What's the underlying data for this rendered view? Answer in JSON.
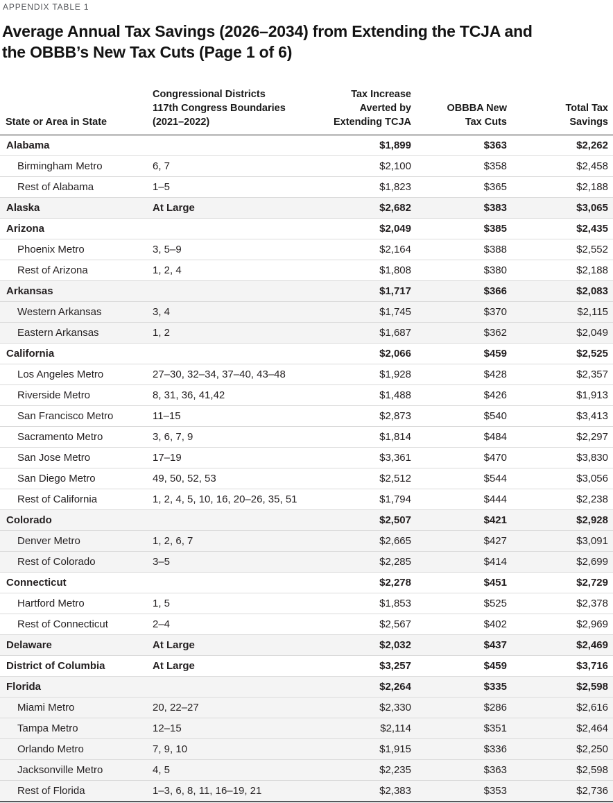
{
  "eyebrow": "APPENDIX TABLE 1",
  "title_line1": "Average Annual Tax Savings (2026–2034) from Extending the TCJA and",
  "title_line2": "the OBBB’s New Tax Cuts (Page 1 of 6)",
  "table": {
    "columns": [
      "State or Area in State",
      "Congressional Districts\n117th Congress Boundaries\n(2021–2022)",
      "Tax Increase\nAverted by\nExtending TCJA",
      "OBBBA New\nTax Cuts",
      "Total Tax\nSavings"
    ],
    "rows": [
      {
        "type": "state",
        "area": "Alabama",
        "districts": "",
        "tcja": "$1,899",
        "obbba": "$363",
        "total": "$2,262"
      },
      {
        "type": "metro",
        "area": "Birmingham Metro",
        "districts": "6, 7",
        "tcja": "$2,100",
        "obbba": "$358",
        "total": "$2,458"
      },
      {
        "type": "metro",
        "area": "Rest of Alabama",
        "districts": "1–5",
        "tcja": "$1,823",
        "obbba": "$365",
        "total": "$2,188"
      },
      {
        "type": "state",
        "area": "Alaska",
        "districts": "At Large",
        "tcja": "$2,682",
        "obbba": "$383",
        "total": "$3,065"
      },
      {
        "type": "state",
        "area": "Arizona",
        "districts": "",
        "tcja": "$2,049",
        "obbba": "$385",
        "total": "$2,435"
      },
      {
        "type": "metro",
        "area": "Phoenix Metro",
        "districts": "3, 5–9",
        "tcja": "$2,164",
        "obbba": "$388",
        "total": "$2,552"
      },
      {
        "type": "metro",
        "area": "Rest of Arizona",
        "districts": "1, 2, 4",
        "tcja": "$1,808",
        "obbba": "$380",
        "total": "$2,188"
      },
      {
        "type": "state",
        "area": "Arkansas",
        "districts": "",
        "tcja": "$1,717",
        "obbba": "$366",
        "total": "$2,083"
      },
      {
        "type": "metro",
        "area": "Western Arkansas",
        "districts": "3, 4",
        "tcja": "$1,745",
        "obbba": "$370",
        "total": "$2,115"
      },
      {
        "type": "metro",
        "area": "Eastern Arkansas",
        "districts": "1, 2",
        "tcja": "$1,687",
        "obbba": "$362",
        "total": "$2,049"
      },
      {
        "type": "state",
        "area": "California",
        "districts": "",
        "tcja": "$2,066",
        "obbba": "$459",
        "total": "$2,525"
      },
      {
        "type": "metro",
        "area": "Los Angeles Metro",
        "districts": "27–30, 32–34, 37–40, 43–48",
        "tcja": "$1,928",
        "obbba": "$428",
        "total": "$2,357"
      },
      {
        "type": "metro",
        "area": "Riverside Metro",
        "districts": "8, 31, 36, 41,42",
        "tcja": "$1,488",
        "obbba": "$426",
        "total": "$1,913"
      },
      {
        "type": "metro",
        "area": "San Francisco Metro",
        "districts": "11–15",
        "tcja": "$2,873",
        "obbba": "$540",
        "total": "$3,413"
      },
      {
        "type": "metro",
        "area": "Sacramento Metro",
        "districts": "3, 6, 7, 9",
        "tcja": "$1,814",
        "obbba": "$484",
        "total": "$2,297"
      },
      {
        "type": "metro",
        "area": "San Jose Metro",
        "districts": "17–19",
        "tcja": "$3,361",
        "obbba": "$470",
        "total": "$3,830"
      },
      {
        "type": "metro",
        "area": "San Diego Metro",
        "districts": "49, 50, 52, 53",
        "tcja": "$2,512",
        "obbba": "$544",
        "total": "$3,056"
      },
      {
        "type": "metro",
        "area": "Rest of California",
        "districts": "1, 2, 4, 5, 10, 16, 20–26, 35, 51",
        "tcja": "$1,794",
        "obbba": "$444",
        "total": "$2,238"
      },
      {
        "type": "state",
        "area": "Colorado",
        "districts": "",
        "tcja": "$2,507",
        "obbba": "$421",
        "total": "$2,928"
      },
      {
        "type": "metro",
        "area": "Denver Metro",
        "districts": "1, 2, 6, 7",
        "tcja": "$2,665",
        "obbba": "$427",
        "total": "$3,091"
      },
      {
        "type": "metro",
        "area": "Rest of Colorado",
        "districts": "3–5",
        "tcja": "$2,285",
        "obbba": "$414",
        "total": "$2,699"
      },
      {
        "type": "state",
        "area": "Connecticut",
        "districts": "",
        "tcja": "$2,278",
        "obbba": "$451",
        "total": "$2,729"
      },
      {
        "type": "metro",
        "area": "Hartford Metro",
        "districts": "1, 5",
        "tcja": "$1,853",
        "obbba": "$525",
        "total": "$2,378"
      },
      {
        "type": "metro",
        "area": "Rest of Connecticut",
        "districts": "2–4",
        "tcja": "$2,567",
        "obbba": "$402",
        "total": "$2,969"
      },
      {
        "type": "state",
        "area": "Delaware",
        "districts": "At Large",
        "tcja": "$2,032",
        "obbba": "$437",
        "total": "$2,469"
      },
      {
        "type": "state",
        "area": "District of Columbia",
        "districts": "At Large",
        "tcja": "$3,257",
        "obbba": "$459",
        "total": "$3,716"
      },
      {
        "type": "state",
        "area": "Florida",
        "districts": "",
        "tcja": "$2,264",
        "obbba": "$335",
        "total": "$2,598"
      },
      {
        "type": "metro",
        "area": "Miami Metro",
        "districts": "20, 22–27",
        "tcja": "$2,330",
        "obbba": "$286",
        "total": "$2,616"
      },
      {
        "type": "metro",
        "area": "Tampa Metro",
        "districts": "12–15",
        "tcja": "$2,114",
        "obbba": "$351",
        "total": "$2,464"
      },
      {
        "type": "metro",
        "area": "Orlando Metro",
        "districts": "7, 9, 10",
        "tcja": "$1,915",
        "obbba": "$336",
        "total": "$2,250"
      },
      {
        "type": "metro",
        "area": "Jacksonville Metro",
        "districts": "4, 5",
        "tcja": "$2,235",
        "obbba": "$363",
        "total": "$2,598"
      },
      {
        "type": "metro",
        "area": "Rest of Florida",
        "districts": "1–3, 6, 8, 11, 16–19, 21",
        "tcja": "$2,383",
        "obbba": "$353",
        "total": "$2,736"
      }
    ]
  },
  "colors": {
    "text": "#231f20",
    "eyebrow_text": "#54565a",
    "shaded_row": "#f4f4f4",
    "row_rule": "#dadada",
    "header_rule": "#2a2a2a",
    "bottom_rule": "#55595c"
  }
}
